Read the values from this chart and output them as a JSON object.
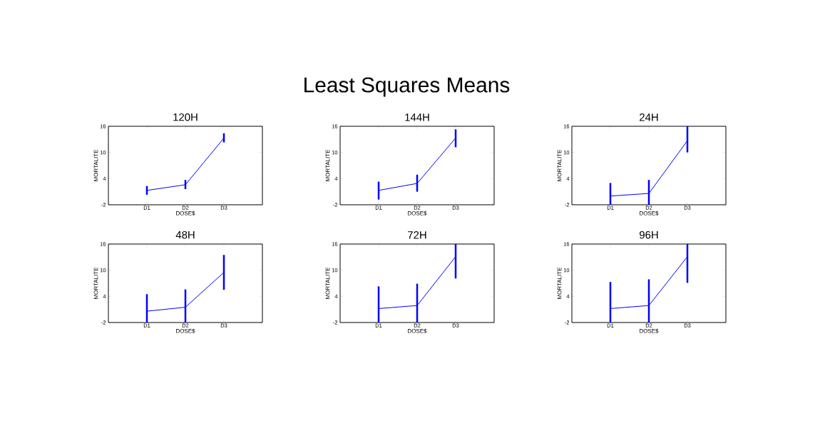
{
  "chart_data": [
    {
      "type": "line",
      "title": "120H",
      "xlabel": "DOSE$",
      "ylabel": "MORTALITE",
      "categories": [
        "D1",
        "D2",
        "D3"
      ],
      "values": [
        1.3,
        2.6,
        13.3
      ],
      "errors": [
        [
          0.3,
          2.3
        ],
        [
          1.6,
          3.7
        ],
        [
          12.3,
          14.4
        ]
      ],
      "color": "#0000ff",
      "ylim": [
        -2,
        16
      ],
      "yticks": [
        -2,
        4,
        10,
        16
      ],
      "annotations": [
        "Least Squares Means"
      ]
    },
    {
      "type": "line",
      "title": "144H",
      "xlabel": "DOSE$",
      "ylabel": "MORTALITE",
      "categories": [
        "D1",
        "D2",
        "D3"
      ],
      "values": [
        1.3,
        2.9,
        13.3
      ],
      "errors": [
        [
          -0.8,
          3.3
        ],
        [
          1.0,
          4.9
        ],
        [
          11.2,
          15.3
        ]
      ],
      "color": "#0000ff",
      "ylim": [
        -2,
        16
      ],
      "yticks": [
        -2,
        4,
        10,
        16
      ]
    },
    {
      "type": "line",
      "title": "24H",
      "xlabel": "DOSE$",
      "ylabel": "MORTALITE",
      "categories": [
        "D1",
        "D2",
        "D3"
      ],
      "values": [
        0.0,
        0.6,
        12.7
      ],
      "errors": [
        [
          -2,
          3.0
        ],
        [
          -2,
          3.7
        ],
        [
          10.0,
          16
        ]
      ],
      "color": "#0000ff",
      "ylim": [
        -2,
        16
      ],
      "yticks": [
        -2,
        4,
        10,
        16
      ]
    },
    {
      "type": "line",
      "title": "48H",
      "xlabel": "DOSE$",
      "ylabel": "MORTALITE",
      "categories": [
        "D1",
        "D2",
        "D3"
      ],
      "values": [
        0.6,
        1.5,
        9.5
      ],
      "errors": [
        [
          -2,
          4.5
        ],
        [
          -2,
          5.6
        ],
        [
          5.5,
          13.5
        ]
      ],
      "color": "#0000ff",
      "ylim": [
        -2,
        16
      ],
      "yticks": [
        -2,
        4,
        10,
        16
      ]
    },
    {
      "type": "line",
      "title": "72H",
      "xlabel": "DOSE$",
      "ylabel": "MORTALITE",
      "categories": [
        "D1",
        "D2",
        "D3"
      ],
      "values": [
        1.2,
        1.9,
        13.1
      ],
      "errors": [
        [
          -2,
          6.3
        ],
        [
          -2,
          6.9
        ],
        [
          8.1,
          16
        ]
      ],
      "color": "#0000ff",
      "ylim": [
        -2,
        16
      ],
      "yticks": [
        -2,
        4,
        10,
        16
      ]
    },
    {
      "type": "line",
      "title": "96H",
      "xlabel": "DOSE$",
      "ylabel": "MORTALITE",
      "categories": [
        "D1",
        "D2",
        "D3"
      ],
      "values": [
        1.2,
        1.9,
        13.1
      ],
      "errors": [
        [
          -2,
          7.3
        ],
        [
          -2,
          7.9
        ],
        [
          7.1,
          16
        ]
      ],
      "color": "#0000ff",
      "ylim": [
        -2,
        16
      ],
      "yticks": [
        -2,
        4,
        10,
        16
      ]
    }
  ]
}
